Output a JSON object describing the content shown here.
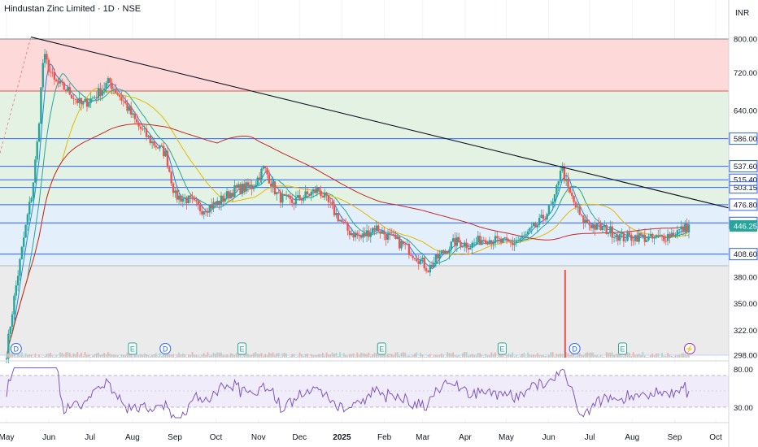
{
  "header": {
    "title": "Hindustan Zinc Limited · 1D · NSE",
    "currency": "INR"
  },
  "colors": {
    "up": "#26a69a",
    "down": "#ef5350",
    "line_blue": "#2962ff",
    "zone_red": "#fdd9da",
    "zone_green": "#e3f2e2",
    "zone_blue": "#e3effb",
    "zone_gray": "#ebebeb",
    "rsi": "#7e57c2",
    "ma_fast": "#1e88e5",
    "ma_mid": "#26a69a",
    "ma_slow": "#e6b800",
    "ma_200": "#c62828"
  },
  "chart_data": {
    "type": "candlestick",
    "title": "Hindustan Zinc Limited · 1D · NSE",
    "currency": "INR",
    "x_labels": [
      "May",
      "Jun",
      "Jul",
      "Aug",
      "Sep",
      "Oct",
      "Nov",
      "Dec",
      "2025",
      "Feb",
      "Mar",
      "Apr",
      "May",
      "Jun",
      "Jul",
      "Aug",
      "Sep",
      "Oct"
    ],
    "y_ticks": [
      800.0,
      720.0,
      640.0,
      380.0,
      350.0,
      322.0,
      298.0
    ],
    "price_scale": "log",
    "horizontal_levels": [
      586.0,
      537.6,
      515.4,
      503.15,
      476.8,
      450.4,
      408.6
    ],
    "last_price": 446.25,
    "price_path": [
      [
        "2024-05-01",
        300
      ],
      [
        "2024-05-10",
        390
      ],
      [
        "2024-05-20",
        500
      ],
      [
        "2024-05-24",
        590
      ],
      [
        "2024-05-28",
        760
      ],
      [
        "2024-06-05",
        700
      ],
      [
        "2024-06-15",
        680
      ],
      [
        "2024-06-25",
        650
      ],
      [
        "2024-07-05",
        670
      ],
      [
        "2024-07-15",
        700
      ],
      [
        "2024-07-25",
        660
      ],
      [
        "2024-08-05",
        610
      ],
      [
        "2024-08-15",
        580
      ],
      [
        "2024-08-25",
        560
      ],
      [
        "2024-09-01",
        490
      ],
      [
        "2024-09-10",
        485
      ],
      [
        "2024-09-20",
        470
      ],
      [
        "2024-10-01",
        478
      ],
      [
        "2024-10-15",
        500
      ],
      [
        "2024-10-28",
        505
      ],
      [
        "2024-11-05",
        535
      ],
      [
        "2024-11-15",
        490
      ],
      [
        "2024-11-25",
        480
      ],
      [
        "2024-12-05",
        490
      ],
      [
        "2024-12-15",
        500
      ],
      [
        "2024-12-25",
        470
      ],
      [
        "2025-01-05",
        440
      ],
      [
        "2025-01-15",
        430
      ],
      [
        "2025-01-25",
        445
      ],
      [
        "2025-02-05",
        430
      ],
      [
        "2025-02-15",
        420
      ],
      [
        "2025-02-25",
        405
      ],
      [
        "2025-03-05",
        390
      ],
      [
        "2025-03-15",
        410
      ],
      [
        "2025-03-25",
        425
      ],
      [
        "2025-04-05",
        420
      ],
      [
        "2025-04-15",
        430
      ],
      [
        "2025-04-25",
        425
      ],
      [
        "2025-05-05",
        422
      ],
      [
        "2025-05-15",
        432
      ],
      [
        "2025-05-25",
        450
      ],
      [
        "2025-06-05",
        480
      ],
      [
        "2025-06-10",
        540
      ],
      [
        "2025-06-15",
        500
      ],
      [
        "2025-06-25",
        455
      ],
      [
        "2025-07-05",
        445
      ],
      [
        "2025-07-15",
        440
      ],
      [
        "2025-07-25",
        430
      ],
      [
        "2025-08-05",
        432
      ],
      [
        "2025-08-15",
        428
      ],
      [
        "2025-08-25",
        432
      ],
      [
        "2025-09-05",
        440
      ],
      [
        "2025-09-12",
        446
      ]
    ],
    "rsi": {
      "upper": 80.0,
      "lower": 30.0
    },
    "event_markers": [
      {
        "date": "2024-05-08",
        "label": "D"
      },
      {
        "date": "2024-08-01",
        "label": "E"
      },
      {
        "date": "2024-08-25",
        "label": "D"
      },
      {
        "date": "2024-10-20",
        "label": "E"
      },
      {
        "date": "2025-01-30",
        "label": "E"
      },
      {
        "date": "2025-04-28",
        "label": "E"
      },
      {
        "date": "2025-06-20",
        "label": "D"
      },
      {
        "date": "2025-07-25",
        "label": "E"
      },
      {
        "date": "2025-09-12",
        "label": "⚡"
      }
    ]
  }
}
